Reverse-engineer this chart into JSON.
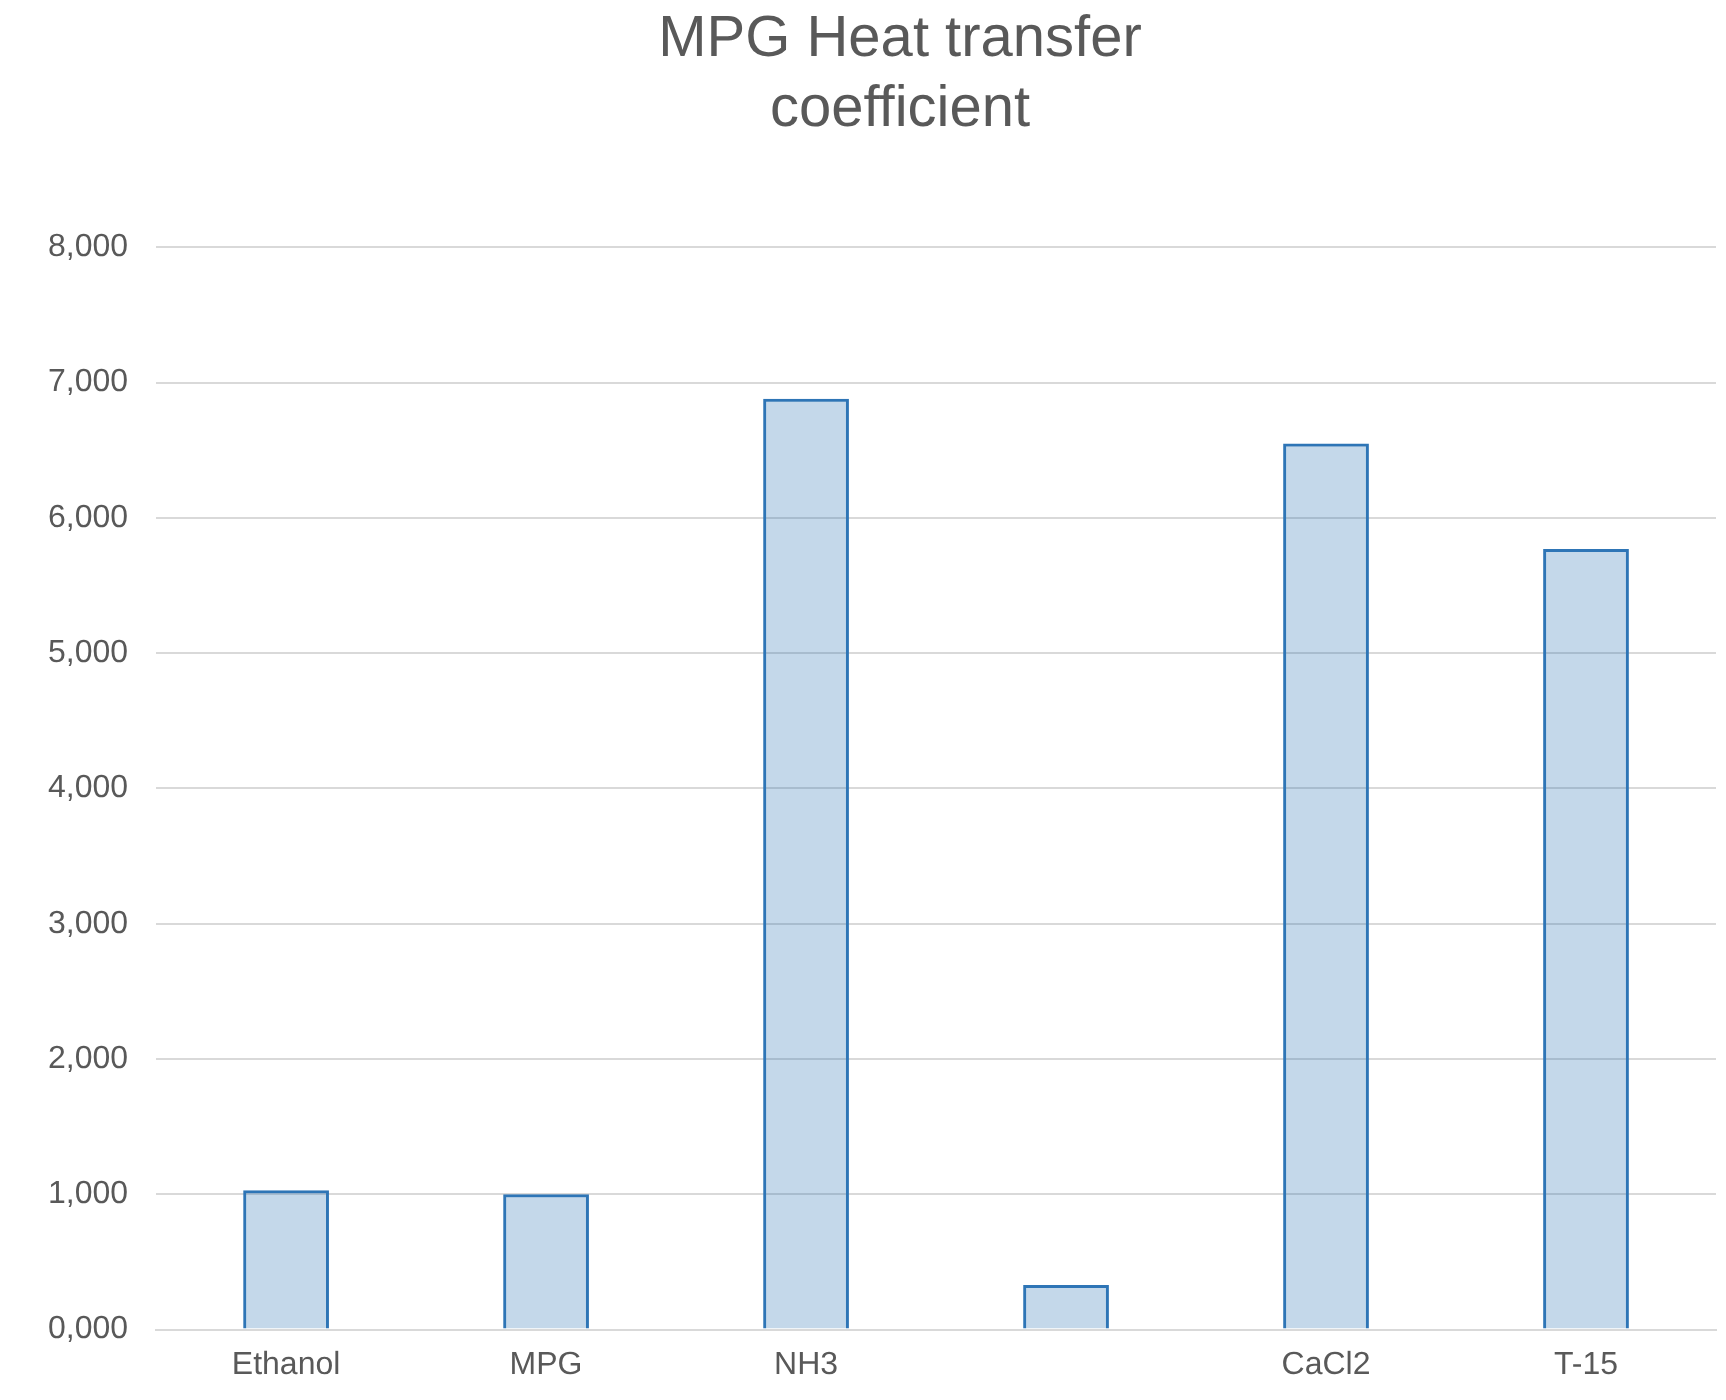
{
  "chart_data": {
    "type": "bar",
    "title": "MPG Heat transfer coefficient",
    "categories": [
      "Ethanol",
      "MPG",
      "NH3",
      null,
      "CaCl2",
      "T-15"
    ],
    "series": [
      {
        "color": "#2e75b6",
        "values": [
          1030,
          1000,
          6880,
          330,
          6550,
          5770
        ]
      }
    ],
    "ylim": [
      0,
      8000
    ],
    "yticks": [
      {
        "value": 0,
        "label": "0,000"
      },
      {
        "value": 1000,
        "label": "1,000"
      },
      {
        "value": 2000,
        "label": "2,000"
      },
      {
        "value": 3000,
        "label": "3,000"
      },
      {
        "value": 4000,
        "label": "4,000"
      },
      {
        "value": 5000,
        "label": "5,000"
      },
      {
        "value": 6000,
        "label": "6,000"
      },
      {
        "value": 7000,
        "label": "7,000"
      },
      {
        "value": 8000,
        "label": "8,000"
      }
    ],
    "grid": "y",
    "legend": false
  }
}
